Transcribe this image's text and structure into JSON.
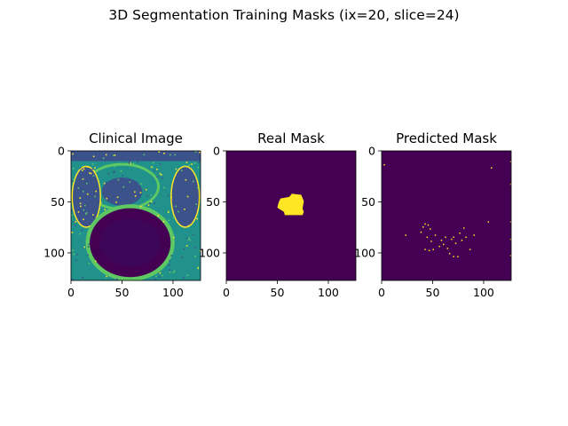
{
  "figure": {
    "title": "3D Segmentation Training Masks (ix=20, slice=24)"
  },
  "colors": {
    "viridis_dark": "#440154",
    "viridis_yellow": "#fde725",
    "viridis_teal": "#21918c",
    "viridis_green": "#5ec962",
    "viridis_blue": "#3b528b",
    "background": "#ffffff"
  },
  "chart_data": [
    {
      "type": "heatmap",
      "title": "Clinical Image",
      "colormap": "viridis",
      "xlim": [
        0,
        127
      ],
      "ylim": [
        127,
        0
      ],
      "xticks": [
        0,
        50,
        100
      ],
      "yticks": [
        0,
        50,
        100
      ],
      "description_features": "pelvic MRI slice with bright tissue, dark circular bladder region centred near (60, 90)"
    },
    {
      "type": "heatmap",
      "title": "Real Mask",
      "colormap": "viridis",
      "xlim": [
        0,
        127
      ],
      "ylim": [
        127,
        0
      ],
      "xticks": [
        0,
        50,
        100
      ],
      "yticks": [
        0,
        50,
        100
      ],
      "mask_region": {
        "x_range": [
          50,
          76
        ],
        "y_range": [
          42,
          63
        ]
      }
    },
    {
      "type": "heatmap",
      "title": "Predicted Mask",
      "colormap": "viridis",
      "xlim": [
        0,
        127
      ],
      "ylim": [
        127,
        0
      ],
      "xticks": [
        0,
        50,
        100
      ],
      "yticks": [
        0,
        50,
        100
      ],
      "points": [
        [
          2,
          13
        ],
        [
          107,
          16
        ],
        [
          126,
          10
        ],
        [
          126,
          32
        ],
        [
          126,
          69
        ],
        [
          126,
          86
        ],
        [
          104,
          69
        ],
        [
          23,
          82
        ],
        [
          38,
          79
        ],
        [
          40,
          74
        ],
        [
          42,
          71
        ],
        [
          45,
          72
        ],
        [
          47,
          76
        ],
        [
          44,
          84
        ],
        [
          48,
          88
        ],
        [
          42,
          96
        ],
        [
          46,
          97
        ],
        [
          50,
          96
        ],
        [
          56,
          93
        ],
        [
          60,
          91
        ],
        [
          64,
          95
        ],
        [
          68,
          86
        ],
        [
          70,
          84
        ],
        [
          72,
          90
        ],
        [
          76,
          80
        ],
        [
          78,
          87
        ],
        [
          80,
          75
        ],
        [
          82,
          84
        ],
        [
          66,
          100
        ],
        [
          70,
          103
        ],
        [
          74,
          103
        ],
        [
          52,
          82
        ],
        [
          58,
          87
        ],
        [
          62,
          84
        ],
        [
          86,
          96
        ],
        [
          90,
          82
        ],
        [
          126,
          102
        ]
      ]
    }
  ]
}
